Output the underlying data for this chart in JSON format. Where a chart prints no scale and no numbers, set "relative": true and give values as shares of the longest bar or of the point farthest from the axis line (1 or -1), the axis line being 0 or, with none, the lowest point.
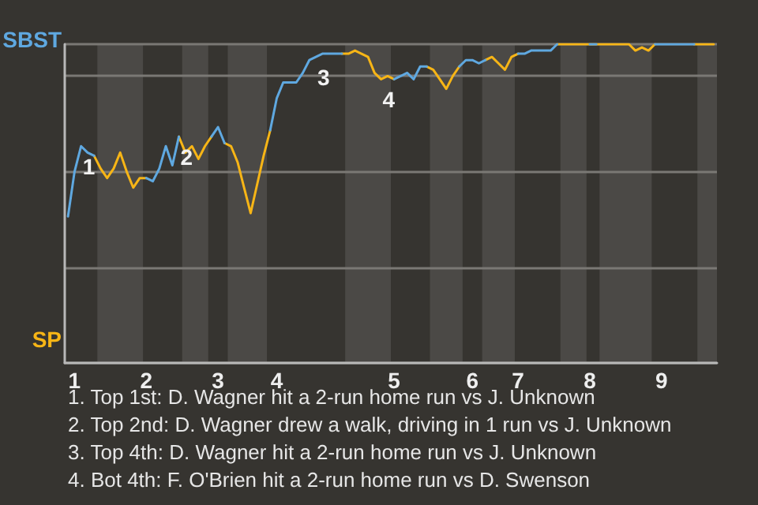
{
  "chart_data": {
    "type": "line",
    "relative": true,
    "categories": [
      null,
      "1",
      null,
      null,
      null,
      null,
      null,
      null,
      null,
      null,
      null,
      null,
      "2",
      null,
      null,
      null,
      null,
      null,
      null,
      null,
      null,
      null,
      null,
      "3",
      null,
      null,
      null,
      null,
      null,
      null,
      null,
      null,
      "4",
      null,
      null,
      null,
      null,
      null,
      null,
      null,
      null,
      null,
      null,
      null,
      null,
      null,
      null,
      null,
      null,
      null,
      "5",
      null,
      null,
      null,
      null,
      null,
      null,
      null,
      null,
      null,
      null,
      null,
      "6",
      null,
      null,
      null,
      null,
      null,
      null,
      "7",
      null,
      null,
      null,
      null,
      null,
      null,
      null,
      null,
      null,
      null,
      "8",
      null,
      null,
      null,
      null,
      null,
      null,
      null,
      null,
      null,
      null,
      "9",
      null,
      null,
      null,
      null,
      null,
      null,
      null,
      null
    ],
    "grid": "y",
    "legend": "left",
    "series": [
      {
        "name": "SBST",
        "color": "#5fa8e0",
        "values": [
          0.46,
          0.6,
          0.68,
          0.66,
          0.65,
          null,
          null,
          null,
          null,
          null,
          null,
          null,
          0.58,
          0.57,
          0.61,
          0.68,
          0.62,
          0.71,
          null,
          null,
          null,
          null,
          0.71,
          0.74,
          0.69,
          null,
          null,
          null,
          null,
          null,
          null,
          0.73,
          0.83,
          0.88,
          0.88,
          0.88,
          0.91,
          0.95,
          0.96,
          0.97,
          0.97,
          0.97,
          0.97,
          null,
          null,
          null,
          null,
          null,
          null,
          null,
          0.89,
          0.9,
          0.91,
          0.89,
          0.93,
          0.93,
          null,
          null,
          null,
          null,
          0.93,
          0.95,
          0.95,
          0.94,
          0.95,
          null,
          null,
          null,
          null,
          0.97,
          0.97,
          0.98,
          0.98,
          0.98,
          0.98,
          1,
          null,
          null,
          null,
          null,
          1,
          1,
          null,
          null,
          null,
          null,
          null,
          null,
          null,
          null,
          1,
          1,
          1,
          1,
          1,
          1,
          1,
          null,
          null,
          null
        ]
      },
      {
        "name": "SP",
        "color": "#f7b516",
        "values": [
          null,
          null,
          null,
          null,
          0.65,
          0.61,
          0.58,
          0.61,
          0.66,
          0.6,
          0.55,
          0.58,
          0.58,
          null,
          null,
          null,
          null,
          0.71,
          0.66,
          0.68,
          0.64,
          0.68,
          0.71,
          null,
          0.69,
          0.68,
          0.63,
          0.55,
          0.47,
          0.56,
          0.65,
          0.73,
          null,
          null,
          null,
          null,
          null,
          null,
          null,
          null,
          null,
          null,
          0.97,
          0.97,
          0.98,
          0.97,
          0.96,
          0.91,
          0.89,
          0.9,
          0.89,
          null,
          null,
          null,
          null,
          0.93,
          0.92,
          0.89,
          0.86,
          0.9,
          0.93,
          null,
          null,
          null,
          0.95,
          0.96,
          0.94,
          0.92,
          0.96,
          0.97,
          null,
          null,
          null,
          null,
          null,
          1,
          1,
          1,
          1,
          1,
          1,
          1,
          1,
          1,
          1,
          1,
          1,
          0.98,
          0.99,
          0.98,
          1,
          null,
          null,
          null,
          null,
          null,
          1,
          1,
          1,
          1
        ]
      }
    ],
    "annotations": [
      {
        "text": "1",
        "y": 0.68
      },
      {
        "text": "2",
        "y": 0.71
      },
      {
        "text": "3",
        "y": 0.96
      },
      {
        "text": "4",
        "y": 0.89
      },
      "1. Top 1st: D. Wagner hit a 2-run home run vs J. Unknown",
      "2. Top 2nd: D. Wagner drew a walk, driving in 1 run vs J. Unknown",
      "3. Top 4th: D. Wagner hit a 2-run home run vs J. Unknown",
      "4. Bot 4th: F. O'Brien hit a 2-run home run vs D. Swenson"
    ]
  }
}
